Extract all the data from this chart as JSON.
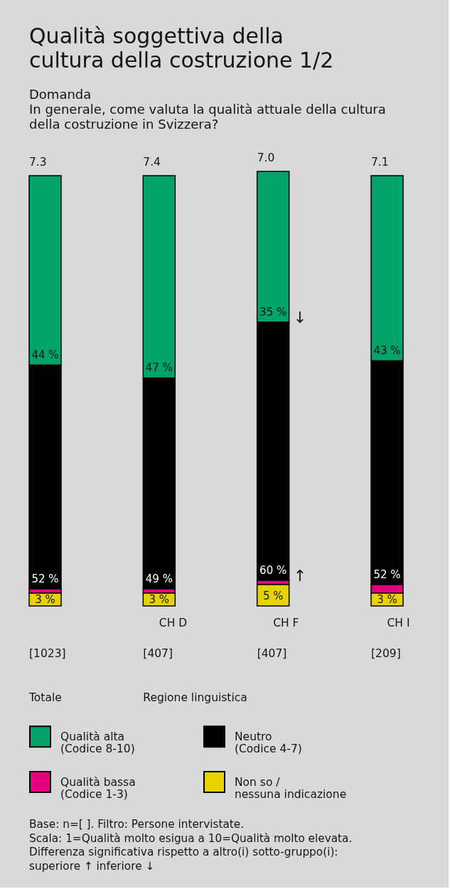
{
  "chart_data": {
    "type": "bar",
    "stacked": true,
    "title": "Qualità soggettiva della\ncultura della costruzione 1/2",
    "subtitle": "Domanda\nIn generale, come valuta la qualità attuale della cultura\ndella costruzione in Svizzera?",
    "categories": [
      null,
      "CH D",
      "CH F",
      "CH I"
    ],
    "series": [
      {
        "name": "Non so /\nnessuna indicazione",
        "color": "#e5d300",
        "values": [
          3,
          3,
          5,
          3
        ],
        "value_labels": [
          "3 %",
          "3 %",
          "5 %",
          "3 %"
        ]
      },
      {
        "name": "Qualità bassa\n(Codice 1-3)",
        "color": "#e5007d",
        "values": [
          1,
          1,
          1,
          2
        ]
      },
      {
        "name": "Neutro\n(Codice 4-7)",
        "color": "#000000",
        "values": [
          52,
          49,
          60,
          52
        ],
        "value_labels": [
          "52 %",
          "49 %",
          "60 %",
          "52 %"
        ]
      },
      {
        "name": "Qualità alta\n(Codice 8-10)",
        "color": "#00a368",
        "values": [
          44,
          47,
          35,
          43
        ],
        "value_labels": [
          "44 %",
          "47 %",
          "35 %",
          "43 %"
        ]
      }
    ],
    "ylim": [
      0,
      101
    ],
    "tick_labels": "x",
    "legend": "bottom",
    "annotations": [
      {
        "text": "7.3",
        "y": 100
      },
      {
        "text": "7.4",
        "x": "CH D",
        "y": 100
      },
      {
        "text": "7.0",
        "x": "CH F",
        "y": 101
      },
      {
        "text": "7.1",
        "x": "CH I",
        "y": 100
      },
      {
        "text": "↓",
        "x": "CH F",
        "y": 67
      },
      {
        "text": "↑",
        "x": "CH F",
        "y": 7
      },
      "[1023]",
      "[407]",
      "[407]",
      "[209]",
      "Totale",
      "Regione linguistica",
      "Base: n=[ ]. Filtro: Persone intervistate.\nScala: 1=Qualità molto esigua a 10=Qualità molto elevata.\nDifferenza significativa rispetto a altro(i)  sotto-gruppo(i):\nsuperiore ↑ inferiore ↓"
    ]
  }
}
